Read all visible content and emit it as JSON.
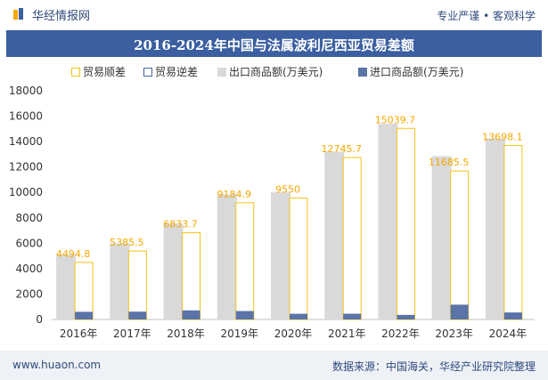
{
  "header": {
    "brand": "华经情报网",
    "slogan": "专业严谨 • 客观科学"
  },
  "footer": {
    "website": "www.huaon.com",
    "source": "数据来源：中国海关，华经产业研究院整理"
  },
  "colors": {
    "title_bg": "#3b5fa0",
    "export": "#d9d9d9",
    "import": "#5a73a8",
    "surplus": "#f5c216",
    "deficit": "#4a6aa5"
  },
  "chart_data": {
    "type": "bar",
    "title": "2016-2024年中国与法属波利尼西亚贸易差额",
    "legend": [
      "贸易顺差",
      "贸易逆差",
      "出口商品额(万美元)",
      "进口商品额(万美元)"
    ],
    "legend_position": "top",
    "categories": [
      "2016年",
      "2017年",
      "2018年",
      "2019年",
      "2020年",
      "2021年",
      "2022年",
      "2023年",
      "2024年"
    ],
    "ylim": [
      0,
      18000
    ],
    "yticks": [
      0,
      2000,
      4000,
      6000,
      8000,
      10000,
      12000,
      14000,
      16000,
      18000
    ],
    "series": [
      {
        "name": "出口商品额(万美元)",
        "values": [
          5100,
          6000,
          7550,
          9850,
          10000,
          13200,
          15400,
          12850,
          14250
        ]
      },
      {
        "name": "进口商品额(万美元)",
        "values": [
          605,
          615,
          716,
          665,
          450,
          454,
          360,
          1165,
          552
        ]
      },
      {
        "name": "贸易顺差",
        "values": [
          4494.8,
          5385.5,
          6833.7,
          9184.9,
          9550,
          12745.7,
          15039.7,
          11685.5,
          13698.1
        ]
      }
    ],
    "data_labels": [
      "4494.8",
      "5385.5",
      "6833.7",
      "9184.9",
      "9550",
      "12745.7",
      "15039.7",
      "11685.5",
      "13698.1"
    ]
  }
}
